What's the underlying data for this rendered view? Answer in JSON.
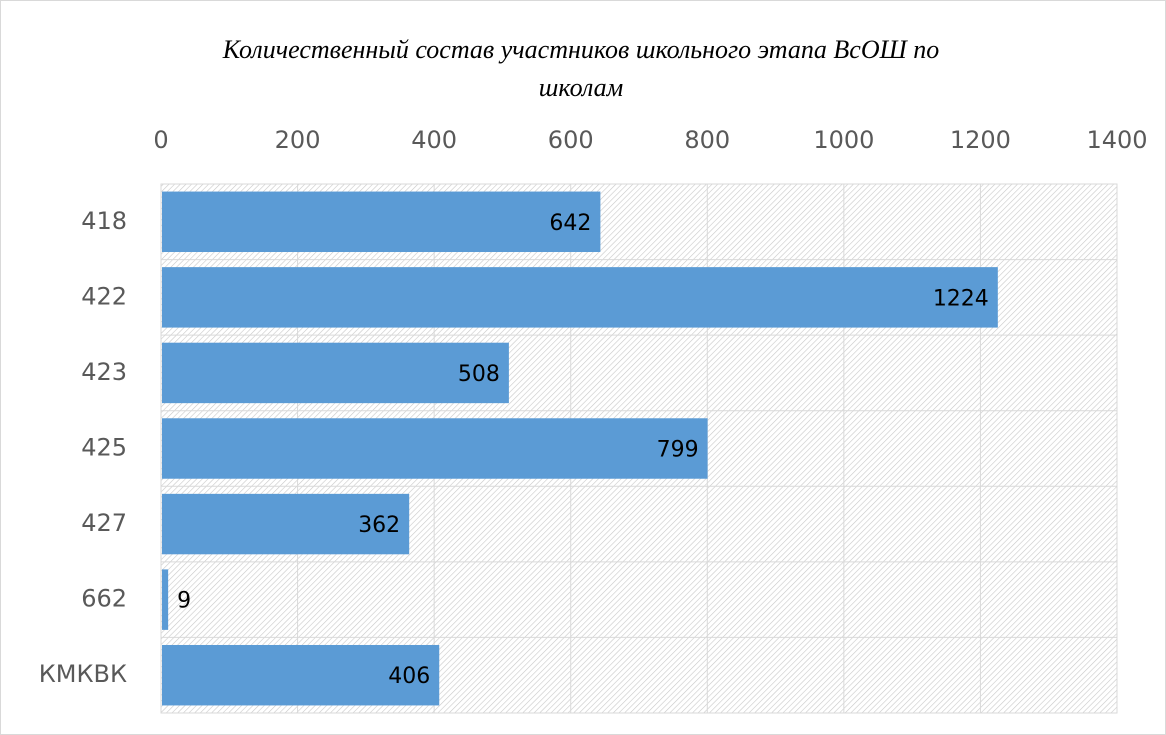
{
  "chart_data": {
    "type": "bar",
    "orientation": "horizontal",
    "title": "Количественный состав участников школьного этапа ВсОШ по школам",
    "categories": [
      "418",
      "422",
      "423",
      "425",
      "427",
      "662",
      "КМКВК"
    ],
    "values": [
      642,
      1224,
      508,
      799,
      362,
      9,
      406
    ],
    "color": "#5b9bd5",
    "xlim": [
      0,
      1400
    ],
    "xticks": [
      0,
      200,
      400,
      600,
      800,
      1000,
      1200,
      1400
    ],
    "grid": true
  }
}
